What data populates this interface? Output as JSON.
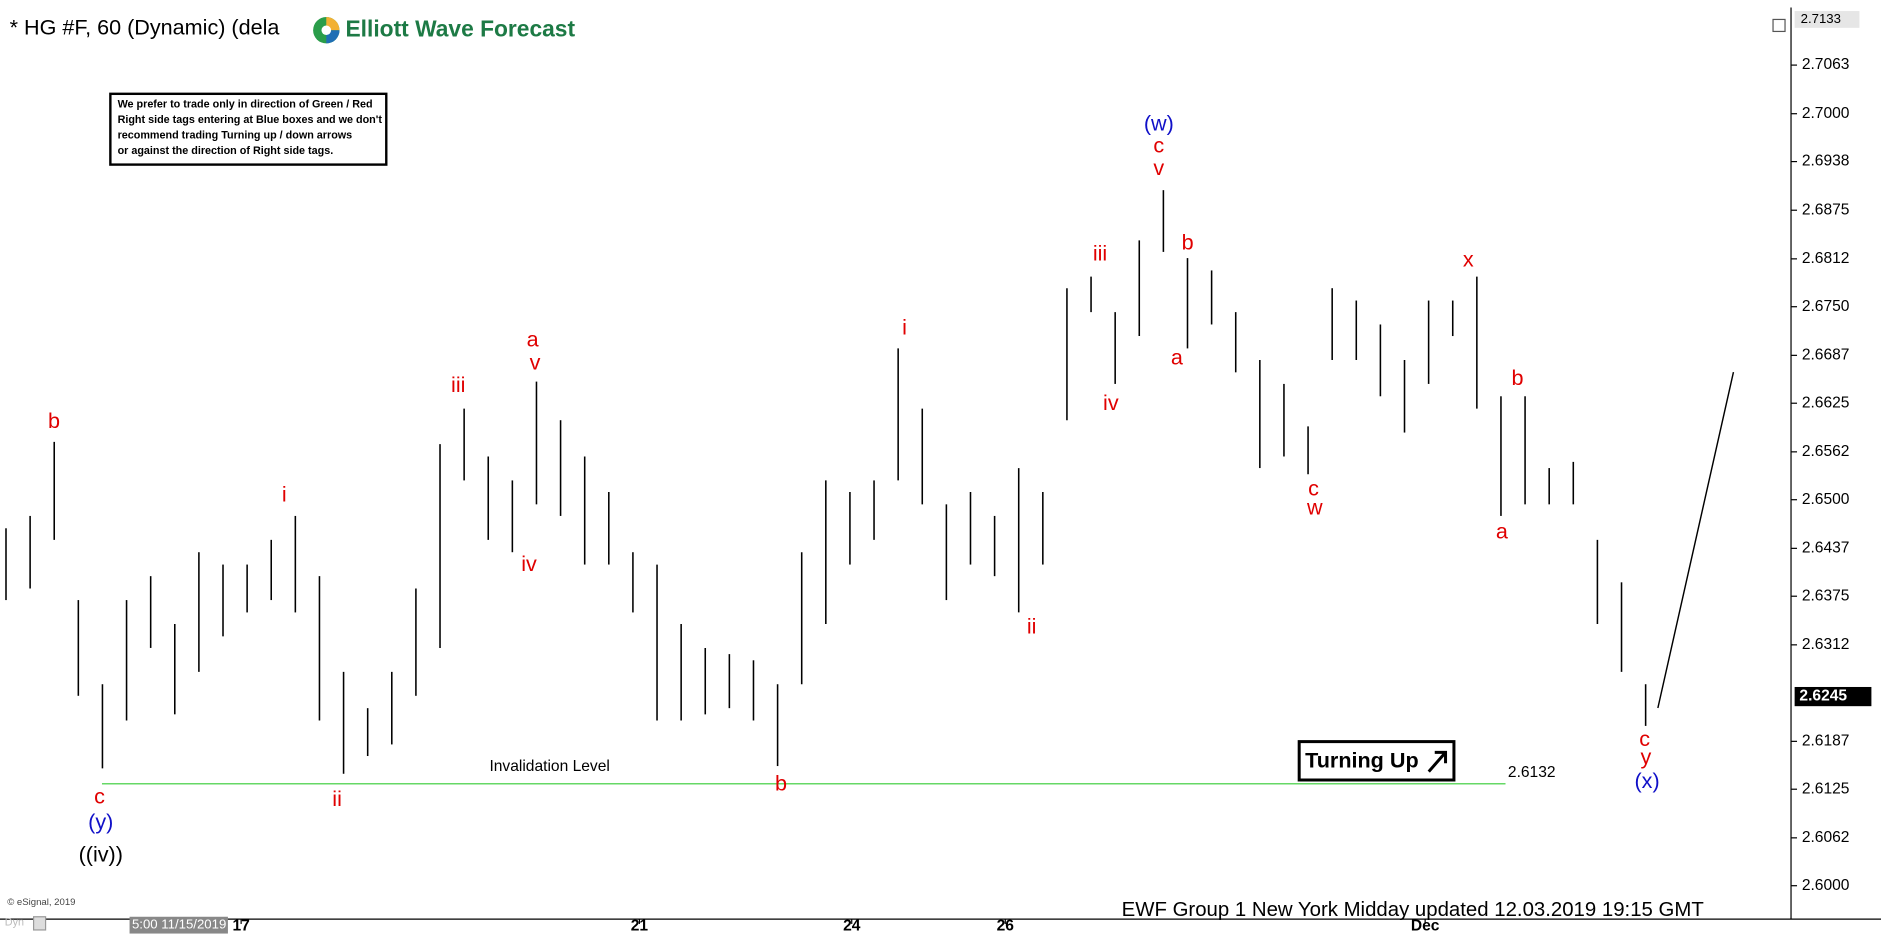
{
  "chart_data": {
    "type": "ohlc",
    "title": "* HG #F, 60 (Dynamic) (dela",
    "logo": "Elliott Wave Forecast",
    "note": [
      "We prefer to trade only in direction of Green / Red",
      "Right side tags entering at Blue boxes and we don't",
      "recommend trading Turning up / down arrows",
      "or against the direction of Right side tags."
    ],
    "invalidation": {
      "label": "Invalidation Level",
      "value": 2.6132,
      "color": "#33cc33"
    },
    "button": "Turning Up",
    "footer": "EWF Group 1 New York Midday  updated 12.03.2019 19:15 GMT",
    "copyright": "© eSignal, 2019",
    "corner_label": "Dyn",
    "date_label": "5:00 11/15/2019",
    "x_labels": [
      "17",
      "21",
      "24",
      "26",
      "Dec"
    ],
    "last_price": 2.6245,
    "bar_color": "#000000",
    "ylim": [
      2.5966,
      2.7133
    ],
    "yticks": [
      2.7063,
      {
        "value": 2.7,
        "label": "2.7000"
      },
      2.6938,
      2.6875,
      2.6812,
      {
        "value": 2.675,
        "label": "2.6750"
      },
      2.6687,
      2.6625,
      2.6562,
      {
        "value": 2.65,
        "label": "2.6500"
      },
      2.6437,
      2.6375,
      2.6312,
      2.6187,
      2.6125,
      2.6062,
      {
        "value": 2.6,
        "label": "2.6000"
      }
    ],
    "high": [
      2.6463,
      2.6479,
      2.6575,
      2.637,
      2.6261,
      2.637,
      2.6401,
      2.6339,
      2.6432,
      2.6416,
      2.6416,
      2.6448,
      2.6479,
      2.6401,
      2.6277,
      2.623,
      2.6277,
      2.6385,
      2.6572,
      2.6618,
      2.6556,
      2.6525,
      2.6653,
      2.6603,
      2.6556,
      2.651,
      2.6432,
      2.6416,
      2.6339,
      2.6308,
      2.63,
      2.6292,
      2.6261,
      2.6432,
      2.6525,
      2.651,
      2.6525,
      2.6696,
      2.6618,
      2.6494,
      2.651,
      2.6479,
      2.6541,
      2.651,
      2.6774,
      2.6789,
      2.6743,
      2.6836,
      2.6901,
      2.6813,
      2.6797,
      2.6743,
      2.6681,
      2.665,
      2.6595,
      2.6774,
      2.6758,
      2.6727,
      2.6681,
      2.6758,
      2.6758,
      2.6789,
      2.6634,
      2.6634,
      2.6541,
      2.6549,
      2.6448,
      2.6393,
      2.6261
    ],
    "low": [
      2.637,
      2.6385,
      2.6448,
      2.6246,
      2.6152,
      2.6214,
      2.6308,
      2.6222,
      2.6277,
      2.6323,
      2.6354,
      2.637,
      2.6354,
      2.6214,
      2.6145,
      2.6168,
      2.6183,
      2.6246,
      2.6308,
      2.6525,
      2.6448,
      2.6432,
      2.6494,
      2.6479,
      2.6416,
      2.6416,
      2.6354,
      2.6214,
      2.6214,
      2.6222,
      2.623,
      2.6214,
      2.6155,
      2.6261,
      2.6339,
      2.6416,
      2.6448,
      2.6525,
      2.6494,
      2.637,
      2.6416,
      2.6401,
      2.6354,
      2.6416,
      2.6603,
      2.6743,
      2.665,
      2.6712,
      2.6821,
      2.6696,
      2.6727,
      2.6665,
      2.6541,
      2.6556,
      2.6533,
      2.6681,
      2.6681,
      2.6634,
      2.6587,
      2.665,
      2.6712,
      2.6618,
      2.6479,
      2.6494,
      2.6494,
      2.6494,
      2.6339,
      2.6277,
      2.6207
    ],
    "wave_labels": [
      {
        "text": "b",
        "color": "#e00000"
      },
      {
        "text": "c",
        "color": "#e00000"
      },
      {
        "text": "(y)",
        "color": "#1010c8"
      },
      {
        "text": "((iv))",
        "color": "#000000"
      },
      {
        "text": "i",
        "color": "#e00000"
      },
      {
        "text": "ii",
        "color": "#e00000"
      },
      {
        "text": "iii",
        "color": "#e00000"
      },
      {
        "text": "a",
        "color": "#e00000"
      },
      {
        "text": "v",
        "color": "#e00000"
      },
      {
        "text": "iv",
        "color": "#e00000"
      },
      {
        "text": "b",
        "color": "#e00000"
      },
      {
        "text": "i",
        "color": "#e00000"
      },
      {
        "text": "ii",
        "color": "#e00000"
      },
      {
        "text": "iii",
        "color": "#e00000"
      },
      {
        "text": "iv",
        "color": "#e00000"
      },
      {
        "text": "(w)",
        "color": "#1010c8"
      },
      {
        "text": "c",
        "color": "#e00000"
      },
      {
        "text": "v",
        "color": "#e00000"
      },
      {
        "text": "b",
        "color": "#e00000"
      },
      {
        "text": "a",
        "color": "#e00000"
      },
      {
        "text": "c",
        "color": "#e00000"
      },
      {
        "text": "w",
        "color": "#e00000"
      },
      {
        "text": "x",
        "color": "#e00000"
      },
      {
        "text": "a",
        "color": "#e00000"
      },
      {
        "text": "b",
        "color": "#e00000"
      },
      {
        "text": "c",
        "color": "#e00000"
      },
      {
        "text": "y",
        "color": "#e00000"
      },
      {
        "text": "(x)",
        "color": "#1010c8"
      }
    ]
  }
}
